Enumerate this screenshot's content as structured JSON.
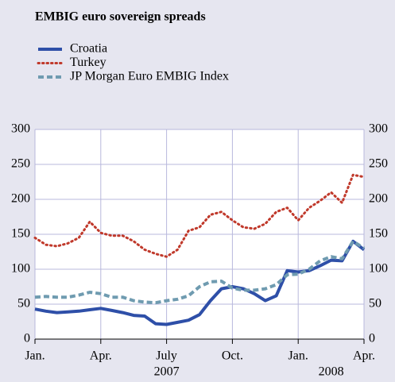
{
  "chart_data": {
    "type": "line",
    "title": "EMBIG euro sovereign spreads",
    "x": [
      0,
      0.5,
      1,
      1.5,
      2,
      2.5,
      3,
      3.5,
      4,
      4.5,
      5,
      5.5,
      6,
      6.5,
      7,
      7.5,
      8,
      8.5,
      9,
      9.5,
      10,
      10.5,
      11,
      11.5,
      12,
      12.5,
      13,
      13.5,
      14,
      14.5,
      15
    ],
    "series": [
      {
        "name": "Croatia",
        "color": "#2e4fa8",
        "style": "solid",
        "values": [
          43,
          40,
          38,
          39,
          40,
          42,
          44,
          41,
          38,
          34,
          33,
          22,
          21,
          24,
          27,
          35,
          55,
          72,
          75,
          72,
          65,
          55,
          62,
          98,
          96,
          98,
          105,
          113,
          112,
          140,
          128
        ]
      },
      {
        "name": "Turkey",
        "color": "#c0392b",
        "style": "dotted",
        "values": [
          145,
          135,
          133,
          137,
          145,
          168,
          152,
          148,
          148,
          140,
          128,
          122,
          118,
          128,
          155,
          160,
          178,
          182,
          170,
          160,
          158,
          165,
          182,
          188,
          170,
          188,
          198,
          210,
          195,
          235,
          232
        ]
      },
      {
        "name": "JP Morgan Euro EMBIG Index",
        "color": "#6f9bb0",
        "style": "dashed",
        "values": [
          60,
          61,
          60,
          60,
          63,
          67,
          65,
          60,
          60,
          55,
          53,
          52,
          55,
          57,
          62,
          75,
          82,
          83,
          73,
          70,
          70,
          72,
          78,
          92,
          93,
          100,
          112,
          118,
          115,
          140,
          130
        ]
      }
    ],
    "xlim": [
      0,
      15
    ],
    "xticks": [
      {
        "value": 0,
        "label": "Jan."
      },
      {
        "value": 3,
        "label": "Apr."
      },
      {
        "value": 6,
        "label": "July"
      },
      {
        "value": 9,
        "label": "Oct."
      },
      {
        "value": 12,
        "label": "Jan."
      },
      {
        "value": 15,
        "label": "Apr."
      }
    ],
    "x_year_labels": [
      {
        "value": 6,
        "label": "2007"
      },
      {
        "value": 13.5,
        "label": "2008"
      }
    ],
    "ylim": [
      0,
      300
    ],
    "yticks": [
      0,
      50,
      100,
      150,
      200,
      250,
      300
    ],
    "y2lim": [
      0,
      300
    ],
    "y2ticks": [
      0,
      50,
      100,
      150,
      200,
      250,
      300
    ],
    "grid": true
  }
}
